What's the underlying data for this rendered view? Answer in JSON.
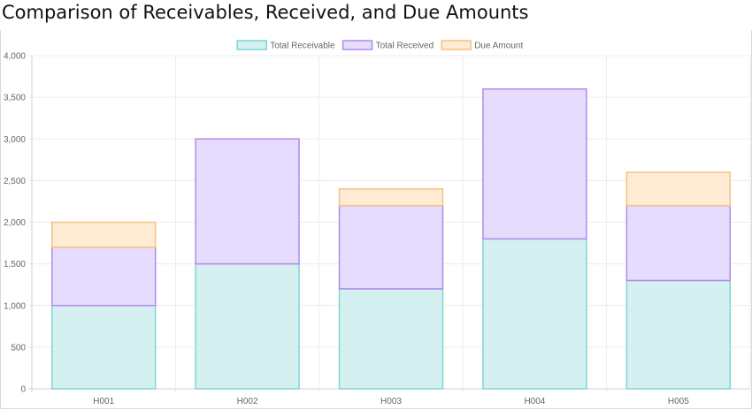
{
  "title": "Comparison of Receivables, Received, and Due Amounts",
  "chart_data": {
    "type": "bar",
    "stacked": true,
    "title": "Comparison of Receivables, Received, and Due Amounts",
    "categories": [
      "H001",
      "H002",
      "H003",
      "H004",
      "H005"
    ],
    "series": [
      {
        "name": "Total Receivable",
        "values": [
          1000,
          1500,
          1200,
          1800,
          1300
        ],
        "fill": "#d5f0f0",
        "stroke": "#7fd4d4"
      },
      {
        "name": "Total Received",
        "values": [
          700,
          1500,
          1000,
          1800,
          900
        ],
        "fill": "#e6dcfe",
        "stroke": "#b38ae8"
      },
      {
        "name": "Due Amount",
        "values": [
          300,
          0,
          200,
          0,
          400
        ],
        "fill": "#fdebd3",
        "stroke": "#f4c283"
      }
    ],
    "ylim": [
      0,
      4000
    ],
    "yticks": [
      0,
      500,
      1000,
      1500,
      2000,
      2500,
      3000,
      3500,
      4000
    ],
    "ytick_labels": [
      "0",
      "500",
      "1,000",
      "1,500",
      "2,000",
      "2,500",
      "3,000",
      "3,500",
      "4,000"
    ],
    "grid": true,
    "legend_position": "top-center"
  }
}
